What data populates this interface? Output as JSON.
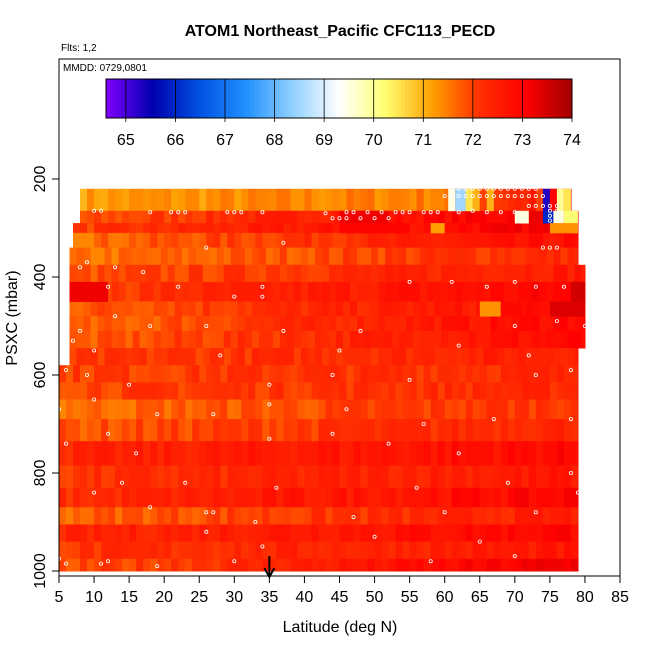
{
  "chart_data": {
    "type": "heatmap",
    "title": "ATOM1 Northeast_Pacific CFC113_PECD",
    "flights_label": "Flts: 1,2",
    "date_label": "MMDD: 0729,0801",
    "xlabel": "Latitude (deg N)",
    "ylabel": "PSXC (mbar)",
    "xlim": [
      5,
      85
    ],
    "ylim": [
      1000,
      0
    ],
    "x_ticks": [
      5,
      10,
      15,
      20,
      25,
      30,
      35,
      40,
      45,
      50,
      55,
      60,
      65,
      70,
      75,
      80,
      85
    ],
    "y_ticks": [
      200,
      400,
      600,
      800,
      1000
    ],
    "marker_latitude": 35,
    "colorbar": {
      "min": 64.6,
      "max": 74,
      "ticks": [
        65,
        66,
        67,
        68,
        69,
        70,
        71,
        72,
        73,
        74
      ],
      "colors": [
        "#8000ff",
        "#0000b0",
        "#0050e0",
        "#2090ff",
        "#90d0ff",
        "#ffffff",
        "#ffff70",
        "#ffa000",
        "#ff3000",
        "#ff0000",
        "#a00000"
      ]
    },
    "bands": [
      {
        "p": [
          220,
          265
        ],
        "lat": [
          8,
          60
        ],
        "v": [
          71.2,
          71.5
        ]
      },
      {
        "p": [
          220,
          265
        ],
        "lat": [
          60,
          78
        ],
        "v": [
          71.5,
          73.0
        ]
      },
      {
        "p": [
          265,
          290
        ],
        "lat": [
          8,
          79
        ],
        "v": [
          71.8,
          73.3
        ]
      },
      {
        "p": [
          290,
          310
        ],
        "lat": [
          7,
          79
        ],
        "v": [
          72.0,
          73.2
        ]
      },
      {
        "p": [
          310,
          340
        ],
        "lat": [
          7,
          79
        ],
        "v": [
          71.6,
          72.8
        ]
      },
      {
        "p": [
          340,
          375
        ],
        "lat": [
          6.5,
          79
        ],
        "v": [
          71.5,
          72.3
        ]
      },
      {
        "p": [
          375,
          410
        ],
        "lat": [
          6.5,
          80
        ],
        "v": [
          71.8,
          72.6
        ]
      },
      {
        "p": [
          410,
          450
        ],
        "lat": [
          6.5,
          80
        ],
        "v": [
          72.0,
          73.0
        ]
      },
      {
        "p": [
          450,
          480
        ],
        "lat": [
          6.5,
          80
        ],
        "v": [
          71.8,
          72.8
        ]
      },
      {
        "p": [
          480,
          510
        ],
        "lat": [
          6.5,
          80
        ],
        "v": [
          71.6,
          73.0
        ]
      },
      {
        "p": [
          510,
          545
        ],
        "lat": [
          6.5,
          80
        ],
        "v": [
          71.7,
          72.9
        ]
      },
      {
        "p": [
          545,
          580
        ],
        "lat": [
          6.5,
          79
        ],
        "v": [
          72.0,
          72.5
        ]
      },
      {
        "p": [
          580,
          615
        ],
        "lat": [
          5,
          79
        ],
        "v": [
          72.0,
          72.3
        ]
      },
      {
        "p": [
          615,
          650
        ],
        "lat": [
          5,
          79
        ],
        "v": [
          72.0,
          72.3
        ]
      },
      {
        "p": [
          650,
          690
        ],
        "lat": [
          5,
          79
        ],
        "v": [
          71.6,
          72.2
        ]
      },
      {
        "p": [
          690,
          735
        ],
        "lat": [
          5,
          79
        ],
        "v": [
          71.8,
          72.4
        ]
      },
      {
        "p": [
          735,
          785
        ],
        "lat": [
          5,
          79
        ],
        "v": [
          72.3,
          72.9
        ]
      },
      {
        "p": [
          785,
          830
        ],
        "lat": [
          5,
          79
        ],
        "v": [
          72.1,
          72.6
        ]
      },
      {
        "p": [
          830,
          870
        ],
        "lat": [
          5,
          79
        ],
        "v": [
          72.2,
          73.0
        ]
      },
      {
        "p": [
          870,
          905
        ],
        "lat": [
          5,
          79
        ],
        "v": [
          71.7,
          72.5
        ]
      },
      {
        "p": [
          905,
          940
        ],
        "lat": [
          5,
          79
        ],
        "v": [
          72.3,
          73.0
        ]
      },
      {
        "p": [
          940,
          975
        ],
        "lat": [
          5,
          79
        ],
        "v": [
          72.1,
          72.6
        ]
      },
      {
        "p": [
          975,
          1000
        ],
        "lat": [
          5,
          79
        ],
        "v": [
          71.8,
          73.2
        ]
      }
    ],
    "patches": [
      {
        "p": [
          290,
          310
        ],
        "lat": [
          45,
          55
        ],
        "v": 73.0
      },
      {
        "p": [
          290,
          310
        ],
        "lat": [
          58,
          60
        ],
        "v": 71.2
      },
      {
        "p": [
          265,
          290
        ],
        "lat": [
          45,
          52
        ],
        "v": 73.2
      },
      {
        "p": [
          220,
          265
        ],
        "lat": [
          60.5,
          61.5
        ],
        "v": 69.5
      },
      {
        "p": [
          220,
          265
        ],
        "lat": [
          61.5,
          63
        ],
        "v": 68.5
      },
      {
        "p": [
          220,
          265
        ],
        "lat": [
          63,
          64
        ],
        "v": 70.5
      },
      {
        "p": [
          220,
          265
        ],
        "lat": [
          64,
          65
        ],
        "v": 71.0
      },
      {
        "p": [
          220,
          265
        ],
        "lat": [
          65,
          66
        ],
        "v": 72.0
      },
      {
        "p": [
          220,
          265
        ],
        "lat": [
          66,
          67
        ],
        "v": 71.0
      },
      {
        "p": [
          220,
          265
        ],
        "lat": [
          73,
          74
        ],
        "v": 72.0
      },
      {
        "p": [
          220,
          265
        ],
        "lat": [
          74,
          75
        ],
        "v": 65.3
      },
      {
        "p": [
          220,
          265
        ],
        "lat": [
          75,
          76
        ],
        "v": 73.0
      },
      {
        "p": [
          220,
          265
        ],
        "lat": [
          76,
          77
        ],
        "v": 70.0
      },
      {
        "p": [
          220,
          265
        ],
        "lat": [
          77,
          78
        ],
        "v": 70.5
      },
      {
        "p": [
          265,
          290
        ],
        "lat": [
          70,
          72
        ],
        "v": 69.5
      },
      {
        "p": [
          265,
          290
        ],
        "lat": [
          74,
          75.5
        ],
        "v": 66.0
      },
      {
        "p": [
          265,
          290
        ],
        "lat": [
          75.5,
          77
        ],
        "v": 69.5
      },
      {
        "p": [
          265,
          290
        ],
        "lat": [
          77,
          79
        ],
        "v": 70.2
      },
      {
        "p": [
          290,
          310
        ],
        "lat": [
          75,
          79
        ],
        "v": 71.3
      },
      {
        "p": [
          410,
          450
        ],
        "lat": [
          6.5,
          12
        ],
        "v": 73.2
      },
      {
        "p": [
          450,
          480
        ],
        "lat": [
          65,
          68
        ],
        "v": 71.3
      },
      {
        "p": [
          450,
          480
        ],
        "lat": [
          68,
          71
        ],
        "v": 72.9
      },
      {
        "p": [
          450,
          480
        ],
        "lat": [
          75,
          80
        ],
        "v": 73.4
      },
      {
        "p": [
          410,
          450
        ],
        "lat": [
          78,
          80
        ],
        "v": 73.5
      }
    ],
    "points": [
      [
        10,
        265
      ],
      [
        11,
        265
      ],
      [
        18,
        268
      ],
      [
        21,
        268
      ],
      [
        22,
        268
      ],
      [
        23,
        268
      ],
      [
        29,
        268
      ],
      [
        30,
        268
      ],
      [
        31,
        268
      ],
      [
        34,
        268
      ],
      [
        43,
        270
      ],
      [
        46,
        268
      ],
      [
        47,
        268
      ],
      [
        49,
        268
      ],
      [
        51,
        268
      ],
      [
        53,
        268
      ],
      [
        54,
        268
      ],
      [
        55,
        268
      ],
      [
        57,
        268
      ],
      [
        58,
        268
      ],
      [
        59,
        268
      ],
      [
        62,
        268
      ],
      [
        64,
        265
      ],
      [
        66,
        268
      ],
      [
        68,
        268
      ],
      [
        70,
        268
      ],
      [
        44,
        280
      ],
      [
        45,
        280
      ],
      [
        46,
        280
      ],
      [
        48,
        280
      ],
      [
        50,
        280
      ],
      [
        52,
        280
      ],
      [
        61,
        220
      ],
      [
        62,
        220
      ],
      [
        63,
        220
      ],
      [
        64,
        220
      ],
      [
        65,
        220
      ],
      [
        66,
        220
      ],
      [
        67,
        220
      ],
      [
        68,
        220
      ],
      [
        69,
        220
      ],
      [
        70,
        220
      ],
      [
        71,
        220
      ],
      [
        72,
        220
      ],
      [
        73,
        220
      ],
      [
        60,
        235
      ],
      [
        61,
        235
      ],
      [
        62,
        235
      ],
      [
        63,
        235
      ],
      [
        64,
        235
      ],
      [
        65,
        235
      ],
      [
        66,
        235
      ],
      [
        67,
        235
      ],
      [
        68,
        235
      ],
      [
        69,
        235
      ],
      [
        70,
        235
      ],
      [
        71,
        235
      ],
      [
        72,
        235
      ],
      [
        73,
        235
      ],
      [
        74,
        235
      ],
      [
        72,
        255
      ],
      [
        73,
        255
      ],
      [
        74,
        255
      ],
      [
        75,
        255
      ],
      [
        76,
        255
      ],
      [
        75,
        265
      ],
      [
        76,
        265
      ],
      [
        75,
        275
      ],
      [
        76,
        275
      ],
      [
        75,
        285
      ],
      [
        76,
        285
      ],
      [
        74,
        340
      ],
      [
        75,
        340
      ],
      [
        76,
        340
      ],
      [
        26,
        340
      ],
      [
        37,
        330
      ],
      [
        8,
        380
      ],
      [
        9,
        370
      ],
      [
        13,
        380
      ],
      [
        17,
        390
      ],
      [
        12,
        420
      ],
      [
        22,
        420
      ],
      [
        30,
        440
      ],
      [
        34,
        420
      ],
      [
        34,
        440
      ],
      [
        55,
        410
      ],
      [
        61,
        410
      ],
      [
        66,
        420
      ],
      [
        70,
        410
      ],
      [
        73,
        420
      ],
      [
        77,
        420
      ],
      [
        13,
        480
      ],
      [
        8,
        510
      ],
      [
        18,
        500
      ],
      [
        26,
        500
      ],
      [
        37,
        510
      ],
      [
        48,
        510
      ],
      [
        70,
        500
      ],
      [
        76,
        490
      ],
      [
        80,
        500
      ],
      [
        7,
        530
      ],
      [
        10,
        550
      ],
      [
        28,
        560
      ],
      [
        45,
        550
      ],
      [
        62,
        540
      ],
      [
        72,
        560
      ],
      [
        6,
        590
      ],
      [
        9,
        600
      ],
      [
        15,
        620
      ],
      [
        35,
        620
      ],
      [
        44,
        600
      ],
      [
        55,
        610
      ],
      [
        73,
        600
      ],
      [
        78,
        590
      ],
      [
        5,
        670
      ],
      [
        10,
        650
      ],
      [
        19,
        680
      ],
      [
        27,
        680
      ],
      [
        35,
        660
      ],
      [
        46,
        670
      ],
      [
        57,
        700
      ],
      [
        67,
        690
      ],
      [
        78,
        690
      ],
      [
        6,
        740
      ],
      [
        12,
        720
      ],
      [
        16,
        760
      ],
      [
        35,
        730
      ],
      [
        44,
        720
      ],
      [
        52,
        740
      ],
      [
        62,
        760
      ],
      [
        10,
        840
      ],
      [
        14,
        820
      ],
      [
        23,
        820
      ],
      [
        36,
        830
      ],
      [
        56,
        830
      ],
      [
        69,
        820
      ],
      [
        78,
        800
      ],
      [
        79,
        840
      ],
      [
        18,
        870
      ],
      [
        26,
        880
      ],
      [
        27,
        880
      ],
      [
        33,
        900
      ],
      [
        47,
        890
      ],
      [
        60,
        880
      ],
      [
        73,
        880
      ],
      [
        26,
        920
      ],
      [
        34,
        950
      ],
      [
        50,
        930
      ],
      [
        65,
        940
      ],
      [
        5,
        975
      ],
      [
        6,
        985
      ],
      [
        11,
        985
      ],
      [
        12,
        980
      ],
      [
        19,
        990
      ],
      [
        30,
        980
      ],
      [
        58,
        980
      ],
      [
        70,
        970
      ]
    ]
  }
}
